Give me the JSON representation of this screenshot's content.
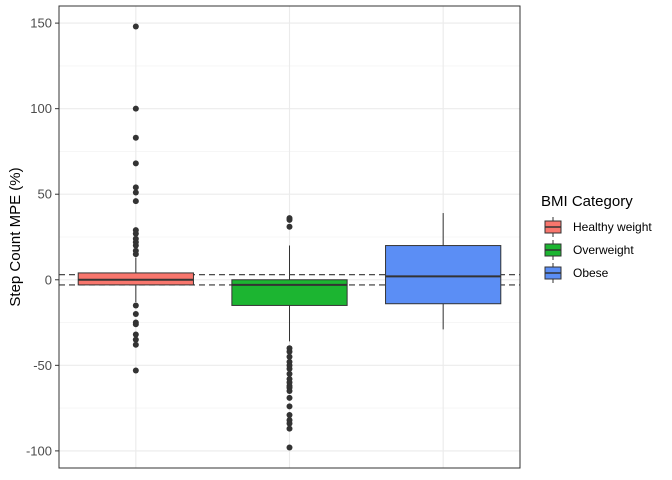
{
  "chart_data": {
    "type": "boxplot",
    "title": "",
    "xlabel": "",
    "ylabel": "Step Count MPE (%)",
    "ylim": [
      -110,
      160
    ],
    "yticks": [
      -100,
      -50,
      0,
      50,
      100,
      150
    ],
    "ytick_labels": [
      "-100",
      "-50",
      "0",
      "50",
      "100",
      "150"
    ],
    "grid": true,
    "legend_title": "BMI Category",
    "legend_position": "right",
    "reference_lines": [
      3,
      -3
    ],
    "series": [
      {
        "name": "Healthy weight",
        "color": "#F8766D",
        "q1": -3,
        "median": 0,
        "q3": 4,
        "whisker_low": -13,
        "whisker_high": 13,
        "outliers": [
          148,
          100,
          83,
          68,
          54,
          51,
          46,
          29,
          27,
          24,
          22,
          20,
          17,
          15,
          -15,
          -20,
          -25,
          -26,
          -32,
          -35,
          -38,
          -53
        ]
      },
      {
        "name": "Overweight",
        "color": "#1CB531",
        "q1": -15,
        "median": -3,
        "q3": 0,
        "whisker_low": -36,
        "whisker_high": 20,
        "outliers": [
          36,
          35,
          31,
          -40,
          -42,
          -45,
          -48,
          -50,
          -52,
          -55,
          -58,
          -60,
          -62,
          -63,
          -65,
          -69,
          -74,
          -79,
          -82,
          -84,
          -87,
          -98
        ]
      },
      {
        "name": "Obese",
        "color": "#5B8EF5",
        "q1": -14,
        "median": 2,
        "q3": 20,
        "whisker_low": -29,
        "whisker_high": 39,
        "outliers": []
      }
    ]
  }
}
